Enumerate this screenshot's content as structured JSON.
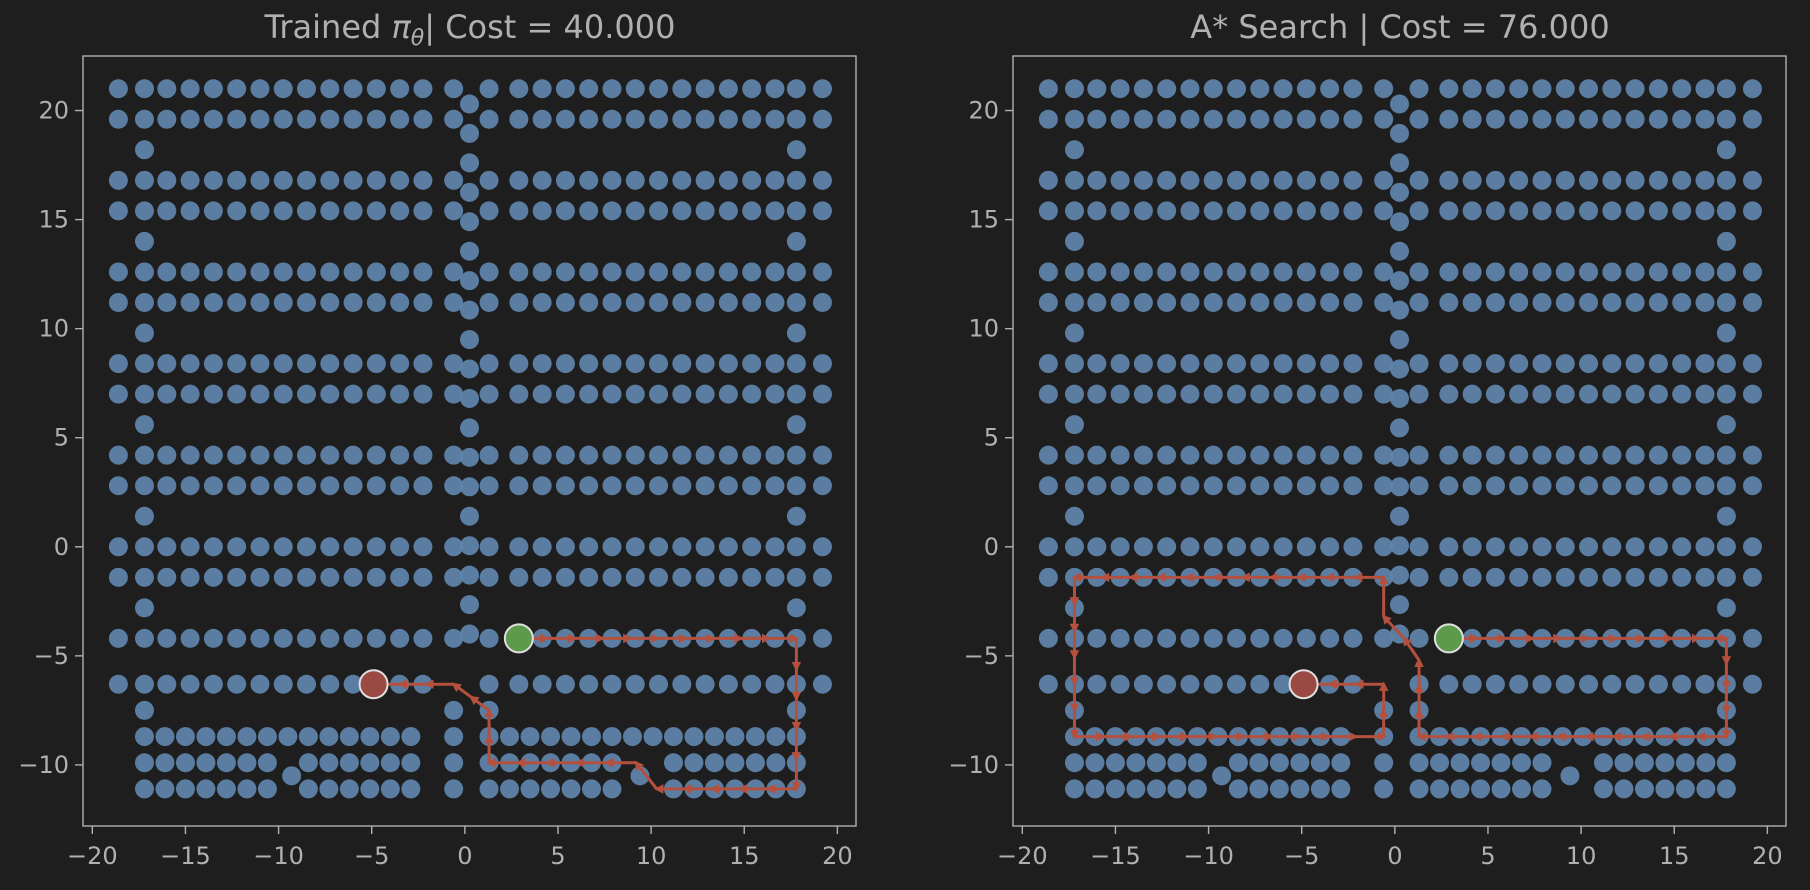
{
  "figure": {
    "background": "#1e1e1e",
    "axes_color": "#b0b0b0",
    "node_color": "#5f85ad",
    "path_color": "#b5503f",
    "start_color": "#5e9a4b",
    "goal_color": "#9a4a42"
  },
  "chart_data": [
    {
      "type": "scatter",
      "title": "Trained π_θ| Cost = 40.000",
      "title_main": "Trained ",
      "title_pi": "π",
      "title_sub": "θ",
      "title_rest": "| Cost = 40.000",
      "xlim": [
        -20.5,
        21
      ],
      "ylim": [
        -12.8,
        22.5
      ],
      "xticks": [
        -20,
        -15,
        -10,
        -5,
        0,
        5,
        10,
        15,
        20
      ],
      "yticks": [
        -10,
        -5,
        0,
        5,
        10,
        15,
        20
      ],
      "xtick_labels": [
        "−20",
        "−15",
        "−10",
        "−5",
        "0",
        "5",
        "10",
        "15",
        "20"
      ],
      "ytick_labels": [
        "−10",
        "−5",
        "0",
        "5",
        "10",
        "15",
        "20"
      ],
      "grid": false,
      "start": [
        2.9,
        -4.2
      ],
      "goal": [
        -4.9,
        -6.3
      ],
      "path": [
        [
          2.9,
          -4.2
        ],
        [
          17.8,
          -4.2
        ],
        [
          17.8,
          -11.1
        ],
        [
          10.3,
          -11.1
        ],
        [
          9.2,
          -9.9
        ],
        [
          1.3,
          -9.9
        ],
        [
          1.3,
          -7.5
        ],
        [
          -0.6,
          -6.3
        ],
        [
          -4.9,
          -6.3
        ]
      ]
    },
    {
      "type": "scatter",
      "title": "A* Search | Cost = 76.000",
      "title_main": "A* Search | Cost = 76.000",
      "title_pi": "",
      "title_sub": "",
      "title_rest": "",
      "xlim": [
        -20.5,
        21
      ],
      "ylim": [
        -12.8,
        22.5
      ],
      "xticks": [
        -20,
        -15,
        -10,
        -5,
        0,
        5,
        10,
        15,
        20
      ],
      "yticks": [
        -10,
        -5,
        0,
        5,
        10,
        15,
        20
      ],
      "xtick_labels": [
        "−20",
        "−15",
        "−10",
        "−5",
        "0",
        "5",
        "10",
        "15",
        "20"
      ],
      "ytick_labels": [
        "−10",
        "−5",
        "0",
        "5",
        "10",
        "15",
        "20"
      ],
      "grid": false,
      "start": [
        2.9,
        -4.2
      ],
      "goal": [
        -4.9,
        -6.3
      ],
      "path": [
        [
          2.9,
          -4.2
        ],
        [
          17.8,
          -4.2
        ],
        [
          17.8,
          -8.7
        ],
        [
          1.3,
          -8.7
        ],
        [
          1.3,
          -5.2
        ],
        [
          0.5,
          -4.2
        ],
        [
          -0.6,
          -3.2
        ],
        [
          -0.6,
          -1.4
        ],
        [
          -17.2,
          -1.4
        ],
        [
          -17.2,
          -8.7
        ],
        [
          -0.6,
          -8.7
        ],
        [
          -0.6,
          -6.3
        ],
        [
          -4.9,
          -6.3
        ]
      ]
    }
  ]
}
